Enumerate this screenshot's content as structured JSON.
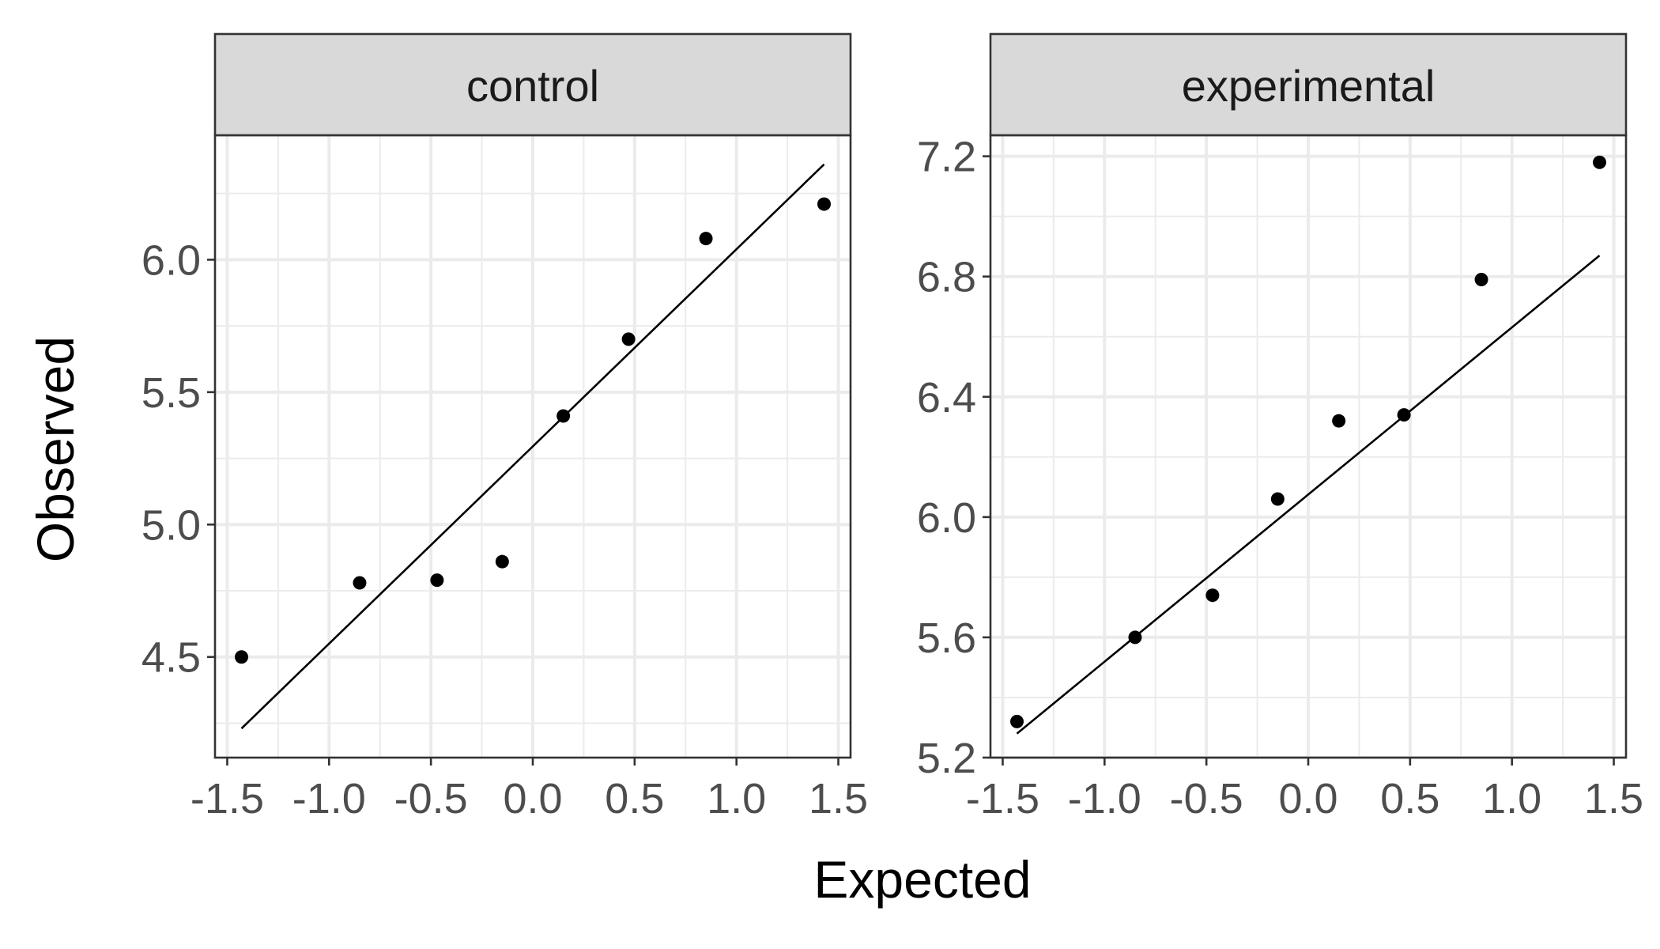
{
  "chart_data": [
    {
      "type": "scatter",
      "facet_label": "control",
      "xlabel": "Expected",
      "ylabel": "Observed",
      "xlim": [
        -1.56,
        1.56
      ],
      "ylim": [
        4.12,
        6.47
      ],
      "x_ticks": [
        -1.5,
        -1.0,
        -0.5,
        0.0,
        0.5,
        1.0,
        1.5
      ],
      "x_tick_labels": [
        "-1.5",
        "-1.0",
        "-0.5",
        "0.0",
        "0.5",
        "1.0",
        "1.5"
      ],
      "y_ticks": [
        4.5,
        5.0,
        5.5,
        6.0
      ],
      "y_tick_labels": [
        "4.5",
        "5.0",
        "5.5",
        "6.0"
      ],
      "grid": true,
      "points": {
        "x": [
          -1.43,
          -0.85,
          -0.47,
          -0.15,
          0.15,
          0.47,
          0.85,
          1.43
        ],
        "y": [
          4.5,
          4.78,
          4.79,
          4.86,
          5.41,
          5.7,
          6.08,
          6.21
        ]
      },
      "reference_line": {
        "x": [
          -1.43,
          1.43
        ],
        "y": [
          4.23,
          6.36
        ]
      }
    },
    {
      "type": "scatter",
      "facet_label": "experimental",
      "xlabel": "Expected",
      "ylabel": "Observed",
      "xlim": [
        -1.56,
        1.56
      ],
      "ylim": [
        5.2,
        7.27
      ],
      "x_ticks": [
        -1.5,
        -1.0,
        -0.5,
        0.0,
        0.5,
        1.0,
        1.5
      ],
      "x_tick_labels": [
        "-1.5",
        "-1.0",
        "-0.5",
        "0.0",
        "0.5",
        "1.0",
        "1.5"
      ],
      "y_ticks": [
        5.2,
        5.6,
        6.0,
        6.4,
        6.8,
        7.2
      ],
      "y_tick_labels": [
        "5.2",
        "5.6",
        "6.0",
        "6.4",
        "6.8",
        "7.2"
      ],
      "grid": true,
      "points": {
        "x": [
          -1.43,
          -0.85,
          -0.47,
          -0.15,
          0.15,
          0.47,
          0.85,
          1.43
        ],
        "y": [
          5.32,
          5.6,
          5.74,
          6.06,
          6.32,
          6.34,
          6.79,
          7.18
        ]
      },
      "reference_line": {
        "x": [
          -1.43,
          1.43
        ],
        "y": [
          5.28,
          6.87
        ]
      }
    }
  ],
  "axis_titles": {
    "x": "Expected",
    "y": "Observed"
  },
  "colors": {
    "point": "#000000",
    "line": "#000000",
    "grid": "#ebebeb",
    "strip_fill": "#d9d9d9",
    "panel_border": "#333333",
    "tick_text": "#4d4d4d",
    "title_text": "#000000"
  }
}
